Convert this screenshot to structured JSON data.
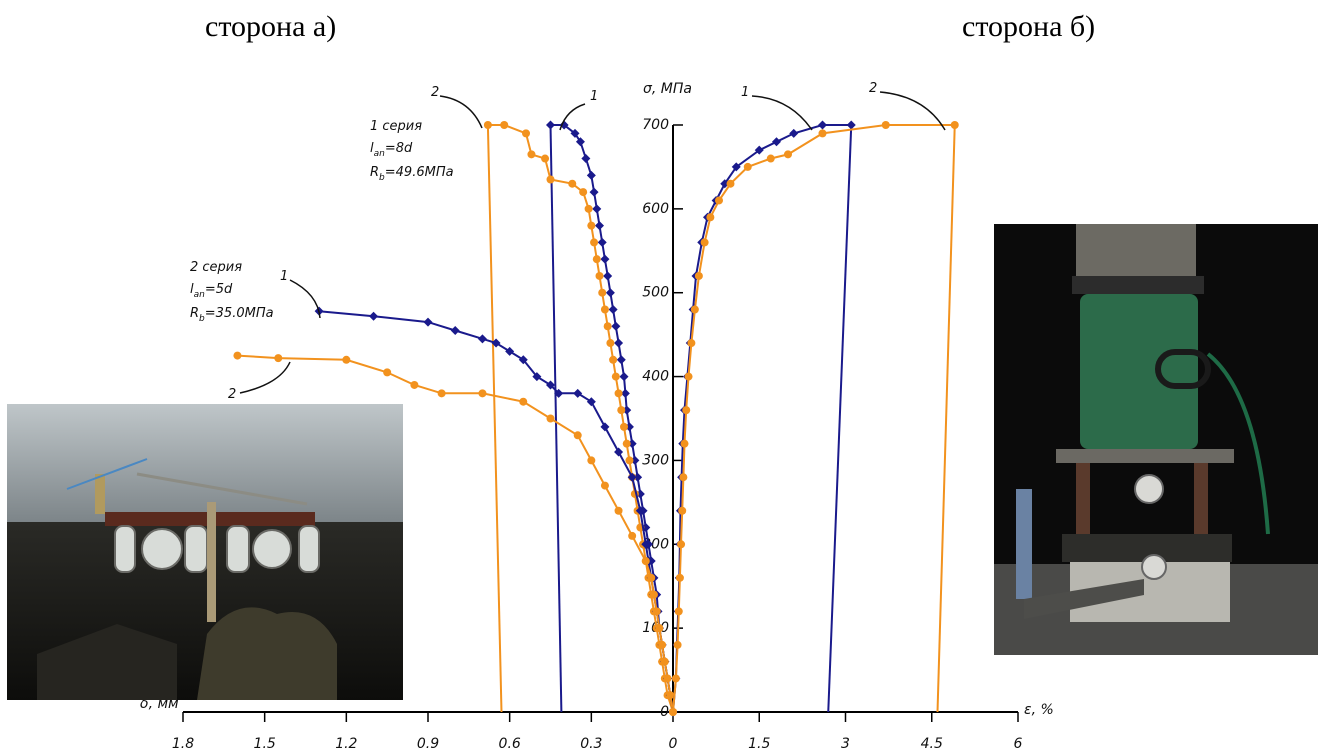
{
  "titles": {
    "side_a": "сторона а)",
    "side_b": "сторона б)"
  },
  "colors": {
    "series1": "#1a1a8c",
    "series2": "#f2921e",
    "axis": "#000000"
  },
  "photos": {
    "left": {
      "name": "dial-gauges-photo"
    },
    "right": {
      "name": "hydraulic-jack-photo"
    }
  },
  "chart_data": {
    "type": "line",
    "xlabel_left": "δ, мм",
    "xlabel_right": "ε, %",
    "ylabel": "σ, МПа",
    "x_ticks_left": [
      "1.8",
      "1.5",
      "1.2",
      "0.9",
      "0.6",
      "0.3",
      "0"
    ],
    "x_ticks_right": [
      "1.5",
      "3",
      "4.5",
      "6"
    ],
    "y_ticks": [
      "0",
      "100",
      "200",
      "300",
      "400",
      "500",
      "600",
      "700"
    ],
    "xlim_left_mm": [
      0,
      1.8
    ],
    "xlim_right_pct": [
      0,
      6
    ],
    "ylim": [
      0,
      700
    ],
    "groups": [
      {
        "label_series": "1 серия",
        "label_lan": "l",
        "label_lan_sub": "an",
        "label_lan_val": "=8d",
        "label_rb": "R",
        "label_rb_sub": "b",
        "label_rb_val": "=49.6МПа"
      },
      {
        "label_series": "2 серия",
        "label_lan": "l",
        "label_lan_sub": "an",
        "label_lan_val": "=5d",
        "label_rb": "R",
        "label_rb_sub": "b",
        "label_rb_val": "=35.0МПа"
      }
    ],
    "callouts": {
      "top_left_2": "2",
      "top_left_1": "1",
      "top_right_1": "1",
      "top_right_2": "2",
      "mid_left_1": "1",
      "mid_left_2": "2"
    },
    "series": [
      {
        "side": "left",
        "color_key": "series1",
        "marker": "diamond",
        "group": "1 серия",
        "points": [
          [
            0,
            0
          ],
          [
            0.01,
            20
          ],
          [
            0.02,
            40
          ],
          [
            0.03,
            60
          ],
          [
            0.04,
            80
          ],
          [
            0.05,
            100
          ],
          [
            0.055,
            120
          ],
          [
            0.06,
            140
          ],
          [
            0.07,
            160
          ],
          [
            0.08,
            180
          ],
          [
            0.09,
            200
          ],
          [
            0.1,
            220
          ],
          [
            0.11,
            240
          ],
          [
            0.12,
            260
          ],
          [
            0.13,
            280
          ],
          [
            0.14,
            300
          ],
          [
            0.15,
            320
          ],
          [
            0.16,
            340
          ],
          [
            0.17,
            360
          ],
          [
            0.175,
            380
          ],
          [
            0.18,
            400
          ],
          [
            0.19,
            420
          ],
          [
            0.2,
            440
          ],
          [
            0.21,
            460
          ],
          [
            0.22,
            480
          ],
          [
            0.23,
            500
          ],
          [
            0.24,
            520
          ],
          [
            0.25,
            540
          ],
          [
            0.26,
            560
          ],
          [
            0.27,
            580
          ],
          [
            0.28,
            600
          ],
          [
            0.29,
            620
          ],
          [
            0.3,
            640
          ],
          [
            0.32,
            660
          ],
          [
            0.34,
            680
          ],
          [
            0.36,
            690
          ],
          [
            0.4,
            700
          ],
          [
            0.45,
            700
          ]
        ],
        "drop": [
          [
            0.45,
            700
          ],
          [
            0.41,
            0
          ]
        ]
      },
      {
        "side": "left",
        "color_key": "series2",
        "marker": "circle",
        "group": "1 серия",
        "points": [
          [
            0,
            0
          ],
          [
            0.02,
            20
          ],
          [
            0.03,
            40
          ],
          [
            0.04,
            60
          ],
          [
            0.05,
            80
          ],
          [
            0.06,
            100
          ],
          [
            0.07,
            120
          ],
          [
            0.08,
            140
          ],
          [
            0.09,
            160
          ],
          [
            0.1,
            180
          ],
          [
            0.11,
            200
          ],
          [
            0.12,
            220
          ],
          [
            0.13,
            240
          ],
          [
            0.14,
            260
          ],
          [
            0.15,
            280
          ],
          [
            0.16,
            300
          ],
          [
            0.17,
            320
          ],
          [
            0.18,
            340
          ],
          [
            0.19,
            360
          ],
          [
            0.2,
            380
          ],
          [
            0.21,
            400
          ],
          [
            0.22,
            420
          ],
          [
            0.23,
            440
          ],
          [
            0.24,
            460
          ],
          [
            0.25,
            480
          ],
          [
            0.26,
            500
          ],
          [
            0.27,
            520
          ],
          [
            0.28,
            540
          ],
          [
            0.29,
            560
          ],
          [
            0.3,
            580
          ],
          [
            0.31,
            600
          ],
          [
            0.33,
            620
          ],
          [
            0.37,
            630
          ],
          [
            0.45,
            635
          ],
          [
            0.47,
            660
          ],
          [
            0.52,
            665
          ],
          [
            0.54,
            690
          ],
          [
            0.62,
            700
          ],
          [
            0.68,
            700
          ]
        ],
        "drop": [
          [
            0.68,
            700
          ],
          [
            0.63,
            0
          ]
        ]
      },
      {
        "side": "left",
        "color_key": "series1",
        "marker": "diamond",
        "group": "2 серия",
        "points": [
          [
            0,
            0
          ],
          [
            0.01,
            20
          ],
          [
            0.02,
            40
          ],
          [
            0.03,
            60
          ],
          [
            0.04,
            80
          ],
          [
            0.05,
            100
          ],
          [
            0.06,
            120
          ],
          [
            0.07,
            140
          ],
          [
            0.08,
            160
          ],
          [
            0.09,
            180
          ],
          [
            0.1,
            200
          ],
          [
            0.12,
            240
          ],
          [
            0.15,
            280
          ],
          [
            0.2,
            310
          ],
          [
            0.25,
            340
          ],
          [
            0.3,
            370
          ],
          [
            0.35,
            380
          ],
          [
            0.42,
            380
          ],
          [
            0.45,
            390
          ],
          [
            0.5,
            400
          ],
          [
            0.55,
            420
          ],
          [
            0.6,
            430
          ],
          [
            0.65,
            440
          ],
          [
            0.7,
            445
          ],
          [
            0.8,
            455
          ],
          [
            0.9,
            465
          ],
          [
            1.1,
            472
          ],
          [
            1.3,
            478
          ]
        ]
      },
      {
        "side": "left",
        "color_key": "series2",
        "marker": "circle",
        "group": "2 серия",
        "points": [
          [
            0,
            0
          ],
          [
            0.01,
            20
          ],
          [
            0.02,
            40
          ],
          [
            0.03,
            60
          ],
          [
            0.04,
            80
          ],
          [
            0.05,
            100
          ],
          [
            0.06,
            120
          ],
          [
            0.07,
            140
          ],
          [
            0.08,
            160
          ],
          [
            0.1,
            180
          ],
          [
            0.15,
            210
          ],
          [
            0.2,
            240
          ],
          [
            0.25,
            270
          ],
          [
            0.3,
            300
          ],
          [
            0.35,
            330
          ],
          [
            0.45,
            350
          ],
          [
            0.55,
            370
          ],
          [
            0.7,
            380
          ],
          [
            0.85,
            380
          ],
          [
            0.95,
            390
          ],
          [
            1.05,
            405
          ],
          [
            1.2,
            420
          ],
          [
            1.45,
            422
          ],
          [
            1.6,
            425
          ]
        ]
      },
      {
        "side": "right",
        "color_key": "series1",
        "marker": "diamond",
        "group": "1 серия",
        "points": [
          [
            0,
            0
          ],
          [
            0.05,
            40
          ],
          [
            0.07,
            80
          ],
          [
            0.09,
            120
          ],
          [
            0.11,
            160
          ],
          [
            0.12,
            200
          ],
          [
            0.13,
            240
          ],
          [
            0.15,
            280
          ],
          [
            0.17,
            320
          ],
          [
            0.2,
            360
          ],
          [
            0.25,
            400
          ],
          [
            0.3,
            440
          ],
          [
            0.35,
            480
          ],
          [
            0.4,
            520
          ],
          [
            0.5,
            560
          ],
          [
            0.6,
            590
          ],
          [
            0.75,
            610
          ],
          [
            0.9,
            630
          ],
          [
            1.1,
            650
          ],
          [
            1.5,
            670
          ],
          [
            1.8,
            680
          ],
          [
            2.1,
            690
          ],
          [
            2.6,
            700
          ],
          [
            3.1,
            700
          ]
        ],
        "drop": [
          [
            3.1,
            700
          ],
          [
            2.7,
            0
          ]
        ]
      },
      {
        "side": "right",
        "color_key": "series2",
        "marker": "circle",
        "group": "1 серия",
        "points": [
          [
            0,
            0
          ],
          [
            0.05,
            40
          ],
          [
            0.08,
            80
          ],
          [
            0.1,
            120
          ],
          [
            0.12,
            160
          ],
          [
            0.14,
            200
          ],
          [
            0.16,
            240
          ],
          [
            0.18,
            280
          ],
          [
            0.2,
            320
          ],
          [
            0.23,
            360
          ],
          [
            0.27,
            400
          ],
          [
            0.32,
            440
          ],
          [
            0.38,
            480
          ],
          [
            0.45,
            520
          ],
          [
            0.55,
            560
          ],
          [
            0.65,
            590
          ],
          [
            0.8,
            610
          ],
          [
            1.0,
            630
          ],
          [
            1.3,
            650
          ],
          [
            1.7,
            660
          ],
          [
            2.0,
            665
          ],
          [
            2.6,
            690
          ],
          [
            3.7,
            700
          ],
          [
            4.9,
            700
          ]
        ],
        "drop": [
          [
            4.9,
            700
          ],
          [
            4.6,
            0
          ]
        ]
      }
    ]
  }
}
